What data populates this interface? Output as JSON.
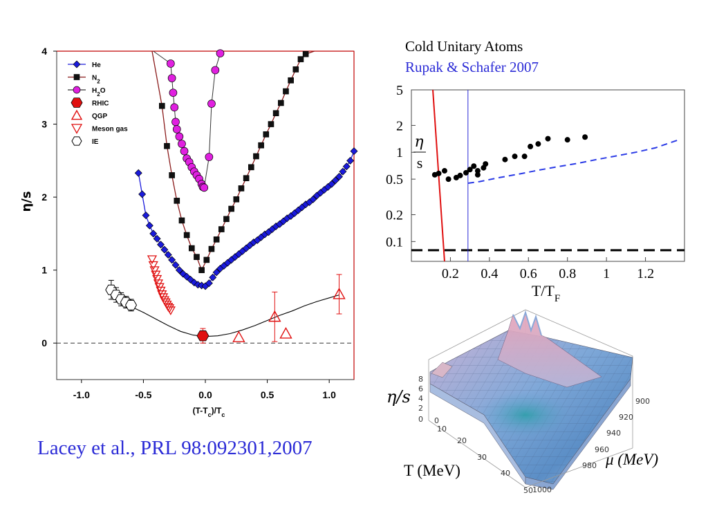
{
  "citation": "Lacey et al., PRL 98:092301,2007",
  "right_title_1": "Cold Unitary Atoms",
  "right_title_2": "Rupak & Schafer 2007",
  "surface_labels": {
    "zlabel": "η/s",
    "xlabel": "T (MeV)",
    "ylabel": "μ (MeV)",
    "z_ticks": [
      "8",
      "6",
      "4",
      "2",
      "0"
    ],
    "x_ticks": [
      "0",
      "10",
      "20",
      "30",
      "40",
      "50"
    ],
    "y_ticks": [
      "900",
      "920",
      "940",
      "960",
      "980",
      "1000"
    ]
  },
  "colors": {
    "he": "#1a1adc",
    "n2": "#111111",
    "h2o": "#e020e0",
    "red": "#e01010",
    "frame_red": "#c00000",
    "blue_text": "#2a2ad6"
  },
  "chart_data": [
    {
      "type": "scatter",
      "xlabel": "(T-T_c)/T_c",
      "ylabel": "η/s",
      "xlim": [
        -1.2,
        1.2
      ],
      "ylim": [
        -0.5,
        4
      ],
      "x_ticks": [
        -1.0,
        -0.5,
        0.0,
        0.5,
        1.0
      ],
      "y_ticks": [
        0,
        1,
        2,
        3,
        4
      ],
      "legend_position": "top-left",
      "legend": [
        "He",
        "N2",
        "H2O",
        "RHIC",
        "QGP",
        "Meson gas",
        "IE"
      ],
      "series": [
        {
          "name": "He",
          "marker": "diamond",
          "x": [
            -0.54,
            -0.51,
            -0.48,
            -0.45,
            -0.42,
            -0.39,
            -0.36,
            -0.33,
            -0.3,
            -0.27,
            -0.24,
            -0.21,
            -0.18,
            -0.15,
            -0.12,
            -0.09,
            -0.06,
            -0.03,
            0.0,
            0.03,
            0.06,
            0.09,
            0.12,
            0.15,
            0.18,
            0.21,
            0.24,
            0.27,
            0.3,
            0.33,
            0.36,
            0.39,
            0.42,
            0.45,
            0.48,
            0.51,
            0.54,
            0.57,
            0.6,
            0.63,
            0.66,
            0.69,
            0.72,
            0.75,
            0.78,
            0.81,
            0.84,
            0.87,
            0.9,
            0.93,
            0.96,
            0.99,
            1.02,
            1.05,
            1.08,
            1.11,
            1.14,
            1.17,
            1.2
          ],
          "y": [
            2.33,
            2.04,
            1.75,
            1.61,
            1.5,
            1.43,
            1.35,
            1.28,
            1.21,
            1.14,
            1.07,
            1.0,
            0.95,
            0.91,
            0.87,
            0.83,
            0.8,
            0.79,
            0.78,
            0.82,
            0.9,
            0.97,
            1.02,
            1.06,
            1.1,
            1.14,
            1.18,
            1.22,
            1.26,
            1.3,
            1.34,
            1.38,
            1.41,
            1.45,
            1.49,
            1.52,
            1.56,
            1.6,
            1.63,
            1.67,
            1.71,
            1.74,
            1.78,
            1.82,
            1.86,
            1.9,
            1.93,
            1.97,
            2.02,
            2.06,
            2.1,
            2.14,
            2.18,
            2.23,
            2.28,
            2.35,
            2.42,
            2.5,
            2.63
          ]
        },
        {
          "name": "N2",
          "marker": "square",
          "x": [
            -0.35,
            -0.31,
            -0.27,
            -0.23,
            -0.19,
            -0.15,
            -0.11,
            -0.07,
            -0.03,
            0.01,
            0.05,
            0.09,
            0.13,
            0.17,
            0.21,
            0.25,
            0.29,
            0.33,
            0.37,
            0.41,
            0.45,
            0.49,
            0.53,
            0.57,
            0.61,
            0.65,
            0.69,
            0.73,
            0.77,
            0.81
          ],
          "y": [
            3.25,
            2.7,
            2.3,
            1.95,
            1.68,
            1.48,
            1.3,
            1.18,
            1.0,
            1.14,
            1.29,
            1.42,
            1.56,
            1.7,
            1.84,
            1.97,
            2.12,
            2.26,
            2.41,
            2.56,
            2.71,
            2.86,
            3.0,
            3.15,
            3.29,
            3.45,
            3.6,
            3.75,
            3.89,
            3.96
          ]
        },
        {
          "name": "H2O",
          "marker": "circle",
          "x": [
            -0.28,
            -0.27,
            -0.26,
            -0.25,
            -0.24,
            -0.23,
            -0.21,
            -0.19,
            -0.17,
            -0.15,
            -0.13,
            -0.11,
            -0.09,
            -0.07,
            -0.05,
            -0.03,
            -0.02,
            -0.01,
            0.03,
            0.05,
            0.08,
            0.12
          ],
          "y": [
            3.83,
            3.63,
            3.43,
            3.23,
            3.03,
            2.93,
            2.83,
            2.73,
            2.63,
            2.53,
            2.48,
            2.41,
            2.35,
            2.3,
            2.25,
            2.18,
            2.14,
            2.13,
            2.55,
            3.28,
            3.74,
            3.97
          ]
        },
        {
          "name": "RHIC",
          "marker": "hexagon-filled",
          "x": [
            -0.02
          ],
          "y": [
            0.1
          ],
          "err": [
            0.1
          ]
        },
        {
          "name": "QGP",
          "marker": "triangle-up",
          "x": [
            0.27,
            0.56,
            0.65,
            1.08
          ],
          "y": [
            0.08,
            0.36,
            0.13,
            0.67
          ],
          "err": [
            0,
            0.34,
            0,
            0.27
          ]
        },
        {
          "name": "Meson gas",
          "marker": "triangle-down",
          "x": [
            -0.43,
            -0.42,
            -0.41,
            -0.4,
            -0.39,
            -0.38,
            -0.37,
            -0.36,
            -0.35,
            -0.34,
            -0.33,
            -0.32,
            -0.31,
            -0.3,
            -0.29,
            -0.28
          ],
          "y": [
            1.15,
            1.07,
            1.0,
            0.94,
            0.88,
            0.82,
            0.77,
            0.72,
            0.67,
            0.63,
            0.59,
            0.56,
            0.53,
            0.5,
            0.48,
            0.45
          ]
        },
        {
          "name": "IE",
          "marker": "hexagon-open",
          "x": [
            -0.76,
            -0.72,
            -0.68,
            -0.64,
            -0.6
          ],
          "y": [
            0.73,
            0.66,
            0.6,
            0.56,
            0.52
          ],
          "err": [
            0.13,
            0.1,
            0.09,
            0.08,
            0.08
          ]
        }
      ],
      "fit_curve": {
        "x": [
          -0.8,
          -0.7,
          -0.6,
          -0.5,
          -0.4,
          -0.3,
          -0.2,
          -0.1,
          0.0,
          0.1,
          0.2,
          0.3,
          0.4,
          0.5,
          0.6,
          0.7,
          0.8,
          0.9,
          1.0,
          1.08
        ],
        "y": [
          0.75,
          0.6,
          0.5,
          0.42,
          0.33,
          0.24,
          0.16,
          0.11,
          0.09,
          0.1,
          0.13,
          0.18,
          0.24,
          0.31,
          0.38,
          0.44,
          0.51,
          0.57,
          0.62,
          0.66
        ]
      },
      "reference_line_y": 0
    },
    {
      "type": "scatter",
      "xlabel": "T/T_F",
      "ylabel": "η/s",
      "ylog": true,
      "xlim": [
        0,
        1.4
      ],
      "ylim": [
        0.06,
        5
      ],
      "x_ticks": [
        "0.2",
        "0.4",
        "0.6",
        "0.8",
        "1",
        "1.2"
      ],
      "x_tick_values": [
        0.2,
        0.4,
        0.6,
        0.8,
        1.0,
        1.2
      ],
      "y_ticks": [
        "0.1",
        "0.2",
        "0.5",
        "1",
        "2",
        "5"
      ],
      "y_tick_values": [
        0.1,
        0.2,
        0.5,
        1,
        2,
        5
      ],
      "points": {
        "x": [
          0.12,
          0.14,
          0.17,
          0.19,
          0.23,
          0.25,
          0.28,
          0.3,
          0.32,
          0.34,
          0.34,
          0.37,
          0.38,
          0.48,
          0.53,
          0.58,
          0.61,
          0.65,
          0.7,
          0.8,
          0.89
        ],
        "y": [
          0.56,
          0.58,
          0.62,
          0.5,
          0.52,
          0.55,
          0.59,
          0.64,
          0.7,
          0.62,
          0.56,
          0.67,
          0.74,
          0.83,
          0.9,
          0.9,
          1.16,
          1.24,
          1.42,
          1.38,
          1.48
        ]
      },
      "red_line": {
        "x": [
          0.11,
          0.17
        ],
        "y": [
          5,
          0.06
        ]
      },
      "blue_vline_x": 0.29,
      "dashed_blue": {
        "x": [
          0.29,
          0.35,
          0.45,
          0.55,
          0.65,
          0.75,
          0.85,
          0.95,
          1.05,
          1.15,
          1.25,
          1.37
        ],
        "y": [
          0.45,
          0.47,
          0.52,
          0.57,
          0.63,
          0.69,
          0.75,
          0.83,
          0.91,
          1.0,
          1.12,
          1.38
        ]
      },
      "dashed_black_y": 0.08
    }
  ]
}
